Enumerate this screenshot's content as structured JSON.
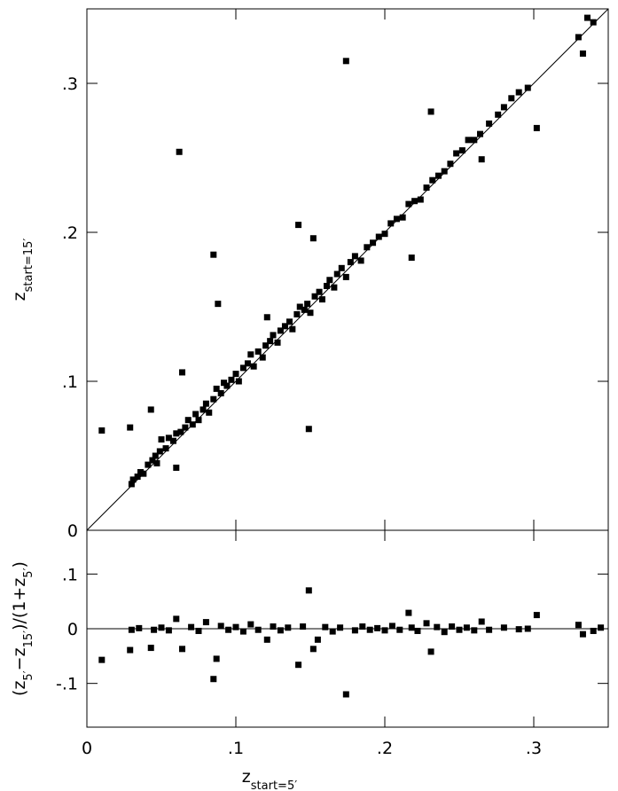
{
  "chart_data": [
    {
      "type": "scatter",
      "color": "#000000",
      "y_label": [
        {
          "text": "z",
          "sub": false
        },
        {
          "text": "start=15′",
          "sub": true
        }
      ],
      "xlim": [
        0,
        0.35
      ],
      "ylim": [
        0,
        0.35
      ],
      "xticks": [
        0,
        0.1,
        0.2,
        0.3
      ],
      "yticks": [
        0,
        {
          "value": 0.1,
          "label": ".1"
        },
        {
          "value": 0.2,
          "label": ".2"
        },
        {
          "value": 0.3,
          "label": ".3"
        }
      ],
      "x": [
        0.01,
        0.029,
        0.043,
        0.062,
        0.064,
        0.085,
        0.088,
        0.142,
        0.149,
        0.174,
        0.231,
        0.302,
        0.218,
        0.06,
        0.047,
        0.121,
        0.152,
        0.03,
        0.031,
        0.034,
        0.036,
        0.038,
        0.041,
        0.044,
        0.046,
        0.049,
        0.05,
        0.053,
        0.055,
        0.058,
        0.06,
        0.063,
        0.066,
        0.068,
        0.071,
        0.073,
        0.075,
        0.078,
        0.08,
        0.082,
        0.085,
        0.087,
        0.09,
        0.092,
        0.094,
        0.097,
        0.1,
        0.102,
        0.105,
        0.108,
        0.11,
        0.112,
        0.115,
        0.118,
        0.12,
        0.123,
        0.125,
        0.128,
        0.13,
        0.133,
        0.136,
        0.138,
        0.141,
        0.143,
        0.146,
        0.148,
        0.15,
        0.153,
        0.156,
        0.158,
        0.161,
        0.163,
        0.166,
        0.168,
        0.171,
        0.174,
        0.177,
        0.18,
        0.184,
        0.188,
        0.192,
        0.196,
        0.2,
        0.204,
        0.208,
        0.212,
        0.216,
        0.22,
        0.224,
        0.228,
        0.232,
        0.236,
        0.24,
        0.244,
        0.248,
        0.252,
        0.256,
        0.26,
        0.264,
        0.265,
        0.27,
        0.276,
        0.28,
        0.285,
        0.29,
        0.296,
        0.33,
        0.333,
        0.336,
        0.34
      ],
      "y": [
        0.067,
        0.069,
        0.081,
        0.254,
        0.106,
        0.185,
        0.152,
        0.205,
        0.068,
        0.315,
        0.281,
        0.27,
        0.183,
        0.042,
        0.045,
        0.143,
        0.196,
        0.031,
        0.034,
        0.036,
        0.039,
        0.038,
        0.044,
        0.047,
        0.05,
        0.053,
        0.061,
        0.055,
        0.062,
        0.06,
        0.065,
        0.066,
        0.069,
        0.074,
        0.071,
        0.078,
        0.074,
        0.081,
        0.085,
        0.079,
        0.088,
        0.095,
        0.092,
        0.099,
        0.097,
        0.101,
        0.105,
        0.1,
        0.109,
        0.112,
        0.118,
        0.11,
        0.12,
        0.116,
        0.124,
        0.127,
        0.131,
        0.126,
        0.134,
        0.137,
        0.14,
        0.135,
        0.145,
        0.15,
        0.148,
        0.152,
        0.146,
        0.157,
        0.16,
        0.155,
        0.164,
        0.168,
        0.163,
        0.172,
        0.176,
        0.17,
        0.18,
        0.184,
        0.181,
        0.19,
        0.193,
        0.197,
        0.199,
        0.206,
        0.209,
        0.21,
        0.219,
        0.221,
        0.222,
        0.23,
        0.235,
        0.238,
        0.241,
        0.246,
        0.253,
        0.255,
        0.262,
        0.262,
        0.266,
        0.249,
        0.273,
        0.279,
        0.284,
        0.29,
        0.294,
        0.297,
        0.331,
        0.32,
        0.344,
        0.341
      ]
    },
    {
      "type": "scatter",
      "color": "#000000",
      "x_label": [
        {
          "text": "z",
          "sub": false
        },
        {
          "text": "start=5′",
          "sub": true
        }
      ],
      "y_label": [
        {
          "text": "(z",
          "sub": false
        },
        {
          "text": "5′",
          "sub": true
        },
        {
          "text": "−z",
          "sub": false
        },
        {
          "text": "15′",
          "sub": true
        },
        {
          "text": ")/(1+z",
          "sub": false
        },
        {
          "text": "5′",
          "sub": true
        },
        {
          "text": ")",
          "sub": false
        }
      ],
      "xlim": [
        0,
        0.35
      ],
      "ylim": [
        -0.18,
        0.18
      ],
      "xticks": [
        0,
        {
          "value": 0.1,
          "label": ".1"
        },
        {
          "value": 0.2,
          "label": ".2"
        },
        {
          "value": 0.3,
          "label": ".3"
        }
      ],
      "yticks": [
        {
          "value": -0.1,
          "label": "-.1"
        },
        0,
        {
          "value": 0.1,
          "label": ".1"
        }
      ],
      "x": [
        0.01,
        0.029,
        0.03,
        0.035,
        0.043,
        0.045,
        0.05,
        0.055,
        0.06,
        0.064,
        0.07,
        0.075,
        0.08,
        0.085,
        0.087,
        0.09,
        0.095,
        0.1,
        0.105,
        0.11,
        0.115,
        0.121,
        0.125,
        0.13,
        0.135,
        0.142,
        0.145,
        0.149,
        0.152,
        0.155,
        0.16,
        0.165,
        0.17,
        0.174,
        0.18,
        0.185,
        0.19,
        0.195,
        0.2,
        0.205,
        0.21,
        0.216,
        0.218,
        0.222,
        0.228,
        0.231,
        0.235,
        0.24,
        0.245,
        0.25,
        0.255,
        0.26,
        0.265,
        0.27,
        0.28,
        0.29,
        0.296,
        0.302,
        0.33,
        0.333,
        0.34,
        0.345
      ],
      "y": [
        -0.057,
        -0.039,
        -0.002,
        0.001,
        -0.035,
        -0.002,
        0.002,
        -0.003,
        0.018,
        -0.037,
        0.003,
        -0.004,
        0.012,
        -0.092,
        -0.055,
        0.005,
        -0.002,
        0.003,
        -0.005,
        0.008,
        -0.002,
        -0.02,
        0.004,
        -0.003,
        0.002,
        -0.066,
        0.004,
        0.07,
        -0.037,
        -0.02,
        0.003,
        -0.005,
        0.002,
        -0.12,
        -0.003,
        0.004,
        -0.002,
        0.001,
        -0.003,
        0.005,
        -0.002,
        0.029,
        0.002,
        -0.004,
        0.01,
        -0.042,
        0.003,
        -0.006,
        0.004,
        -0.002,
        0.002,
        -0.003,
        0.013,
        -0.002,
        0.002,
        -0.001,
        0.0,
        0.025,
        0.007,
        -0.01,
        -0.004,
        0.002
      ]
    }
  ]
}
